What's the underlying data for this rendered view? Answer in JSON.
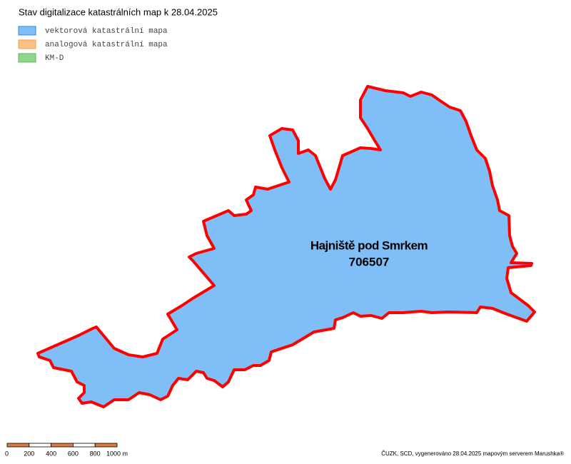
{
  "title": "Stav digitalizace katastrálních map k 28.04.2025",
  "legend": [
    {
      "label": "vektorová katastrální mapa",
      "color": "#80bef7",
      "border": "#2a88e0"
    },
    {
      "label": "analogová katastrální mapa",
      "color": "#ffc084",
      "border": "#f0a050"
    },
    {
      "label": "KM-D",
      "color": "#8fd68a",
      "border": "#5cb858"
    }
  ],
  "area": {
    "name": "Hajniště pod Smrkem",
    "code": "706507"
  },
  "scale_bar": {
    "labels": [
      "0",
      "200",
      "400",
      "600",
      "800",
      "1000 m"
    ]
  },
  "credit": "ČUZK, SCD, vygenerováno 28.04.2025 mapovým serverem Marushka®"
}
